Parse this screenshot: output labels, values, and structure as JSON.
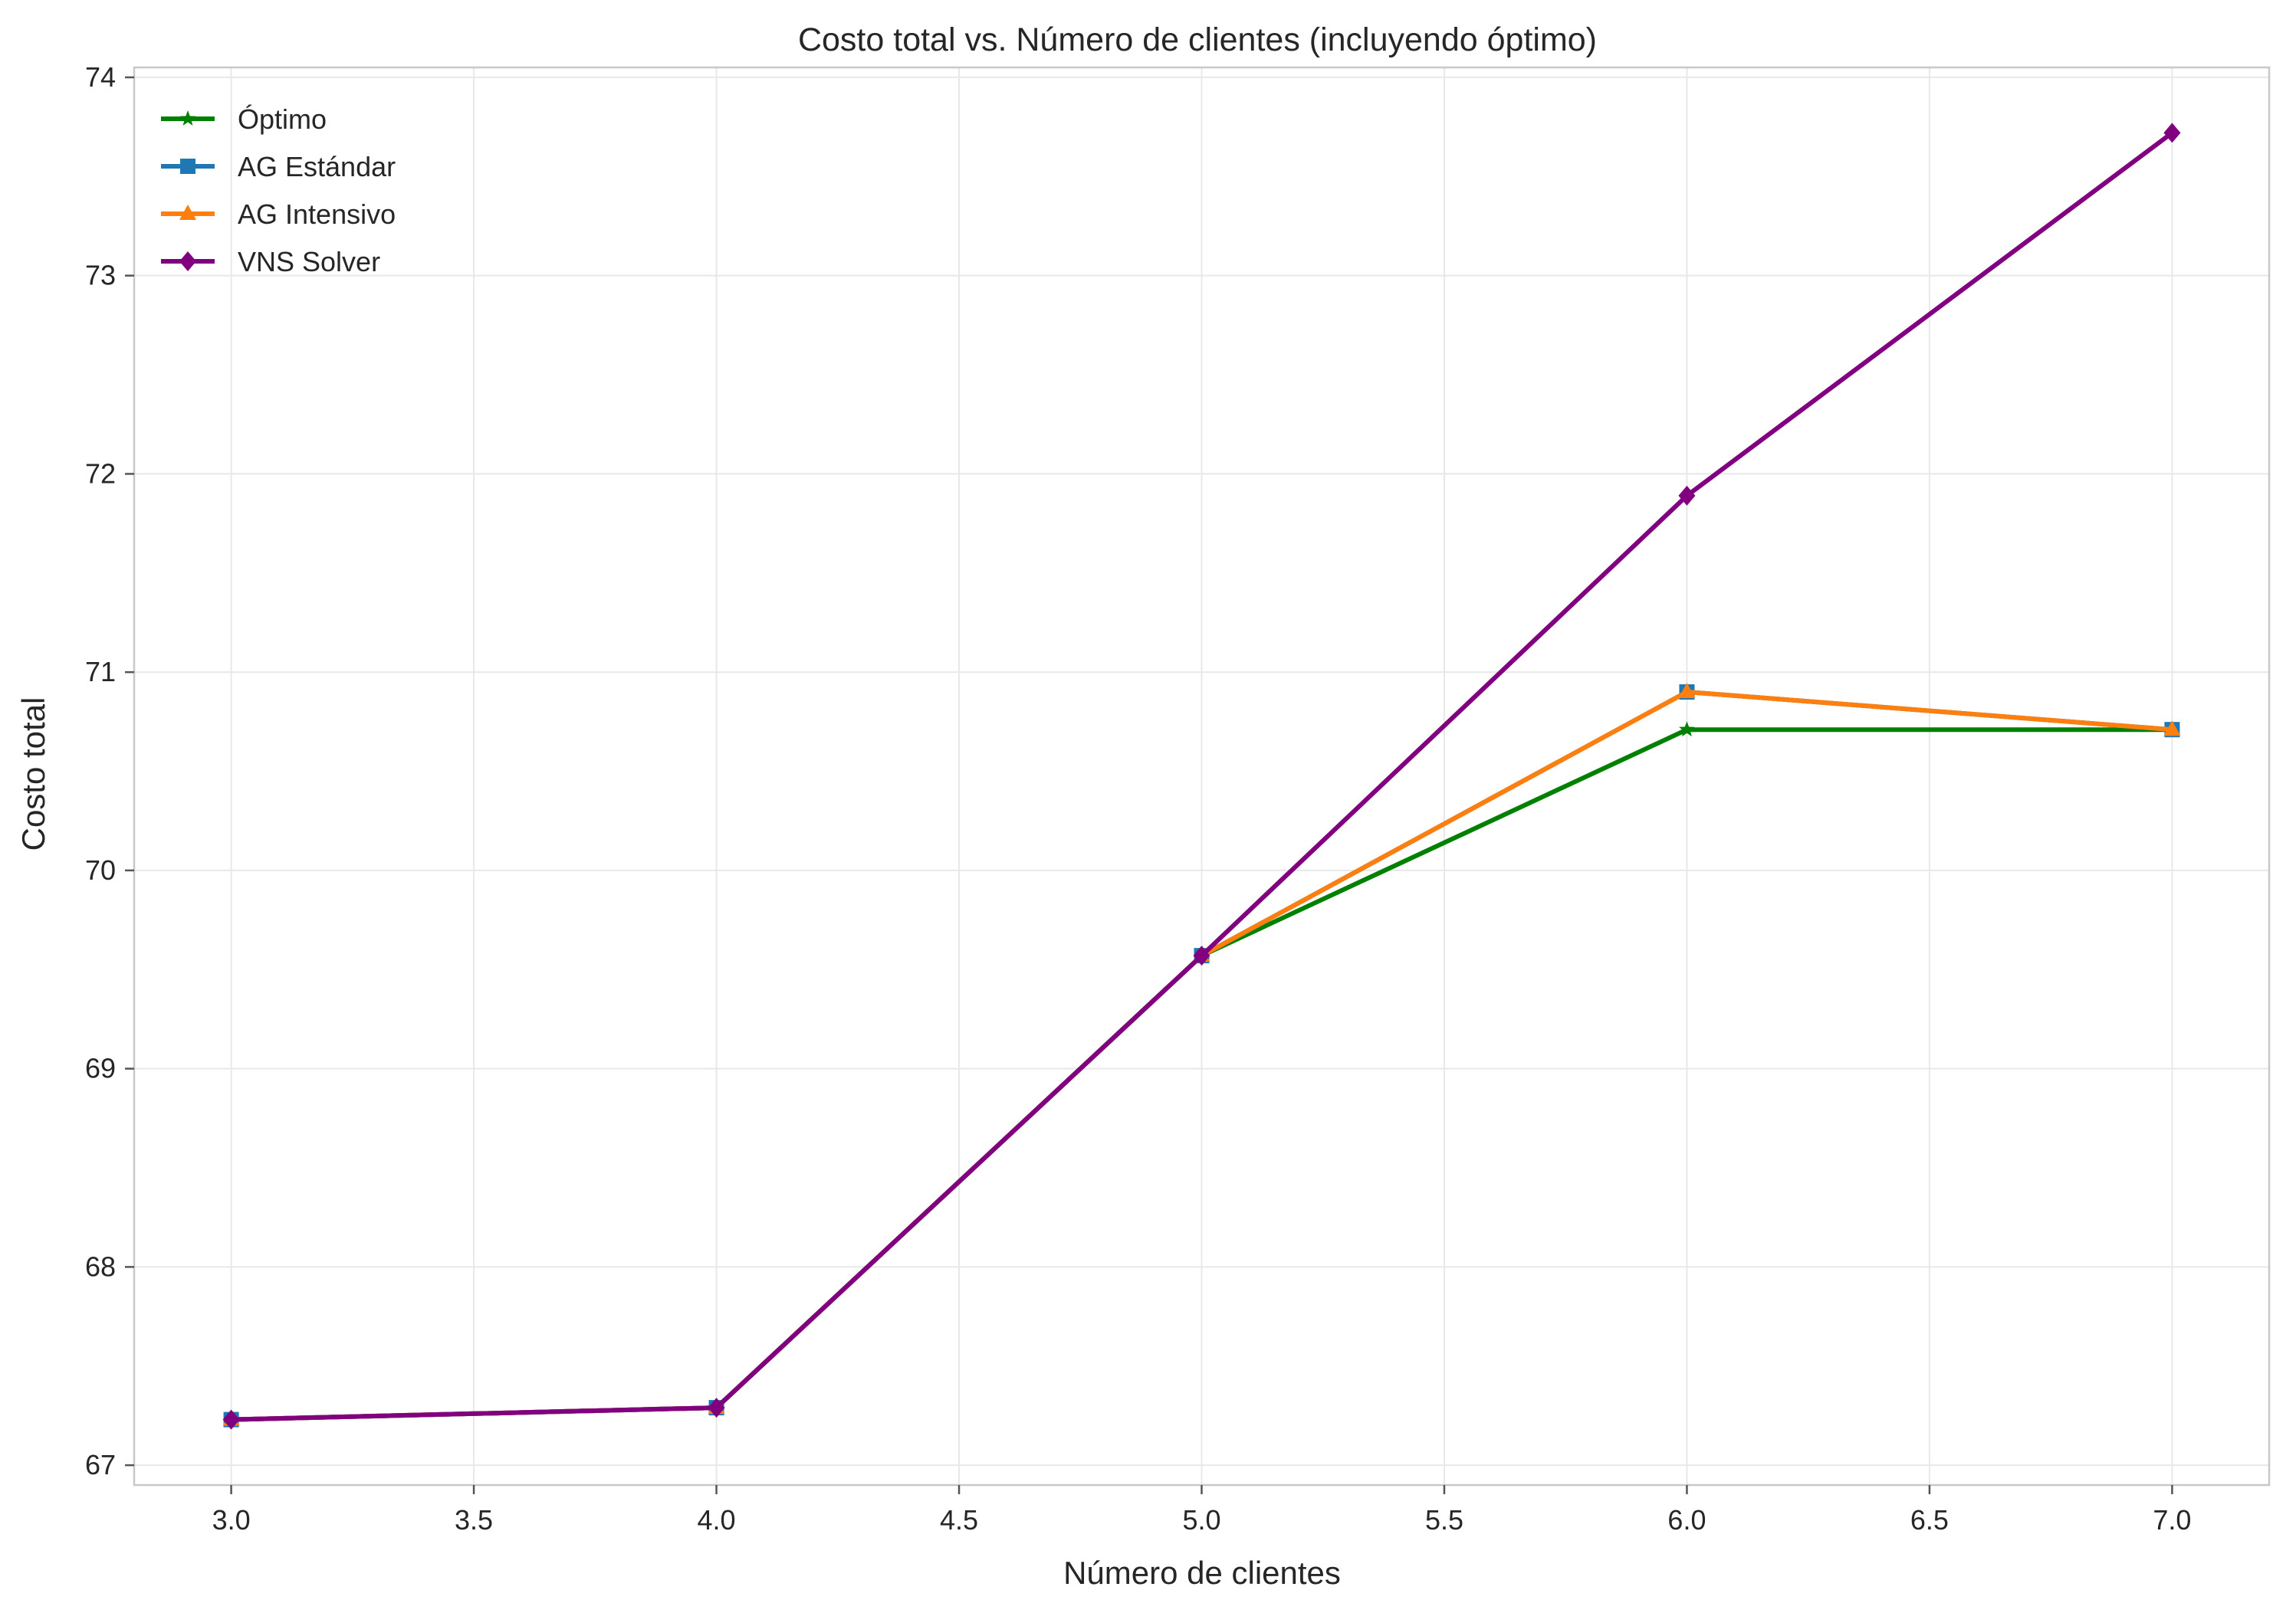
{
  "chart_data": {
    "type": "line",
    "title": "Costo total vs. Número de clientes (incluyendo óptimo)",
    "xlabel": "Número de clientes",
    "ylabel": "Costo total",
    "xlim": [
      2.8,
      7.2
    ],
    "ylim": [
      66.9,
      74.05
    ],
    "xticks": [
      3.0,
      3.5,
      4.0,
      4.5,
      5.0,
      5.5,
      6.0,
      6.5,
      7.0
    ],
    "xtick_labels": [
      "3.0",
      "3.5",
      "4.0",
      "4.5",
      "5.0",
      "5.5",
      "6.0",
      "6.5",
      "7.0"
    ],
    "yticks": [
      67,
      68,
      69,
      70,
      71,
      72,
      73,
      74
    ],
    "ytick_labels": [
      "67",
      "68",
      "69",
      "70",
      "71",
      "72",
      "73",
      "74"
    ],
    "grid": true,
    "legend_position": "upper-left",
    "x": [
      3,
      4,
      5,
      6,
      7
    ],
    "series": [
      {
        "name": "Óptimo",
        "color": "#008000",
        "marker": "star",
        "values": [
          67.23,
          67.29,
          69.57,
          70.71,
          70.71
        ]
      },
      {
        "name": "AG Estándar",
        "color": "#1f77b4",
        "marker": "square",
        "values": [
          67.23,
          67.29,
          69.57,
          70.9,
          70.71
        ]
      },
      {
        "name": "AG Intensivo",
        "color": "#ff7f0e",
        "marker": "triangle-up",
        "values": [
          67.23,
          67.29,
          69.57,
          70.9,
          70.71
        ]
      },
      {
        "name": "VNS Solver",
        "color": "#800080",
        "marker": "diamond",
        "values": [
          67.23,
          67.29,
          69.57,
          71.89,
          73.72
        ]
      }
    ]
  }
}
